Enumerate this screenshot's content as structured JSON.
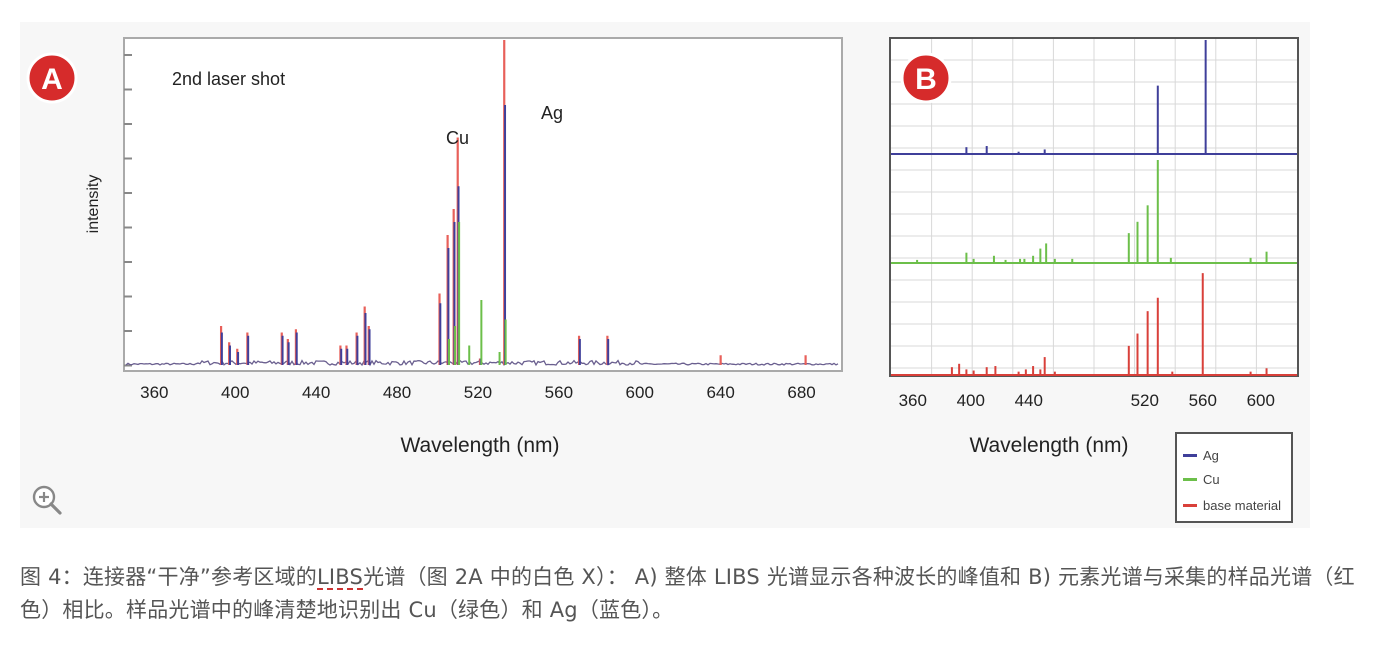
{
  "figure": {
    "panel_a": {
      "badge": "A",
      "annotation": "2nd laser shot",
      "peak_label_cu": "Cu",
      "peak_label_ag": "Ag",
      "ylabel": "intensity",
      "xlabel": "Wavelength (nm)"
    },
    "panel_b": {
      "badge": "B",
      "xlabel": "Wavelength (nm)"
    },
    "badge_color": "#d62b2b"
  },
  "legend": [
    {
      "label": "Ag",
      "color": "#3f3f9a"
    },
    {
      "label": "Cu",
      "color": "#6cbf4a"
    },
    {
      "label": "base material",
      "color": "#d9403a"
    }
  ],
  "caption": {
    "part1": "图 4：连接器“干净”参考区域的",
    "link": "LIBS",
    "part2": "光谱（图 2A 中的白色 X）： A) 整体 LIBS 光谱显示各种波长的峰值和 B) 元素光谱与采集的样品光谱（红色）相比。样品光谱中的峰清楚地识别出 Cu（绿色）和 Ag（蓝色）。"
  },
  "chart_data": [
    {
      "type": "line",
      "xlabel": "Wavelength (nm)",
      "ylabel": "intensity",
      "xlim": [
        345,
        700
      ],
      "xticks": [
        360,
        400,
        440,
        480,
        520,
        560,
        600,
        640,
        680
      ],
      "ylim": [
        0,
        100
      ],
      "grid": false,
      "series": [
        {
          "color": "#e8605a",
          "x": [
            393,
            397,
            401,
            406,
            423,
            426,
            430,
            452,
            455,
            460,
            464,
            466,
            501,
            505,
            508,
            510,
            521,
            528,
            533,
            570,
            584,
            640,
            682
          ],
          "y": [
            12,
            7,
            5,
            10,
            10,
            8,
            11,
            6,
            6,
            10,
            18,
            12,
            22,
            40,
            48,
            70,
            2,
            0,
            100,
            9,
            9,
            3,
            3
          ]
        },
        {
          "color": "#3f3f9a",
          "x": [
            393,
            397,
            401,
            406,
            423,
            426,
            430,
            452,
            455,
            460,
            464,
            466,
            501,
            505,
            508,
            510,
            521,
            528,
            533,
            570,
            584
          ],
          "y": [
            10,
            6,
            4,
            9,
            9,
            7,
            10,
            5,
            5,
            9,
            16,
            11,
            19,
            36,
            44,
            55,
            2,
            0,
            80,
            8,
            8
          ]
        },
        {
          "color": "#6cbf4a",
          "x": [
            505,
            508,
            510,
            515,
            521,
            530,
            533
          ],
          "y": [
            8,
            12,
            44,
            6,
            20,
            4,
            14
          ]
        }
      ]
    },
    {
      "type": "line",
      "xlabel": "Wavelength (nm)",
      "xlim": [
        345,
        625
      ],
      "xticks": [
        360,
        400,
        440,
        520,
        560,
        600
      ],
      "grid": true,
      "series": [
        {
          "name": "Ag",
          "color": "#3f3f9a",
          "x": [
            397,
            411,
            433,
            451,
            529,
            562
          ],
          "y": [
            6,
            7,
            2,
            4,
            60,
            100
          ]
        },
        {
          "name": "Cu",
          "color": "#6cbf4a",
          "x": [
            363,
            397,
            402,
            416,
            424,
            434,
            437,
            443,
            448,
            452,
            458,
            470,
            509,
            515,
            522,
            529,
            538,
            593,
            604
          ],
          "y": [
            3,
            10,
            4,
            7,
            3,
            4,
            4,
            7,
            14,
            19,
            4,
            4,
            29,
            40,
            56,
            100,
            5,
            5,
            11
          ]
        },
        {
          "name": "base material",
          "color": "#d9403a",
          "x": [
            387,
            392,
            397,
            402,
            411,
            417,
            433,
            438,
            443,
            448,
            451,
            458,
            509,
            515,
            522,
            529,
            539,
            560,
            593,
            604
          ],
          "y": [
            7,
            10,
            5,
            4,
            7,
            8,
            3,
            5,
            8,
            5,
            16,
            3,
            26,
            37,
            57,
            69,
            3,
            91,
            3,
            6
          ]
        }
      ]
    }
  ]
}
